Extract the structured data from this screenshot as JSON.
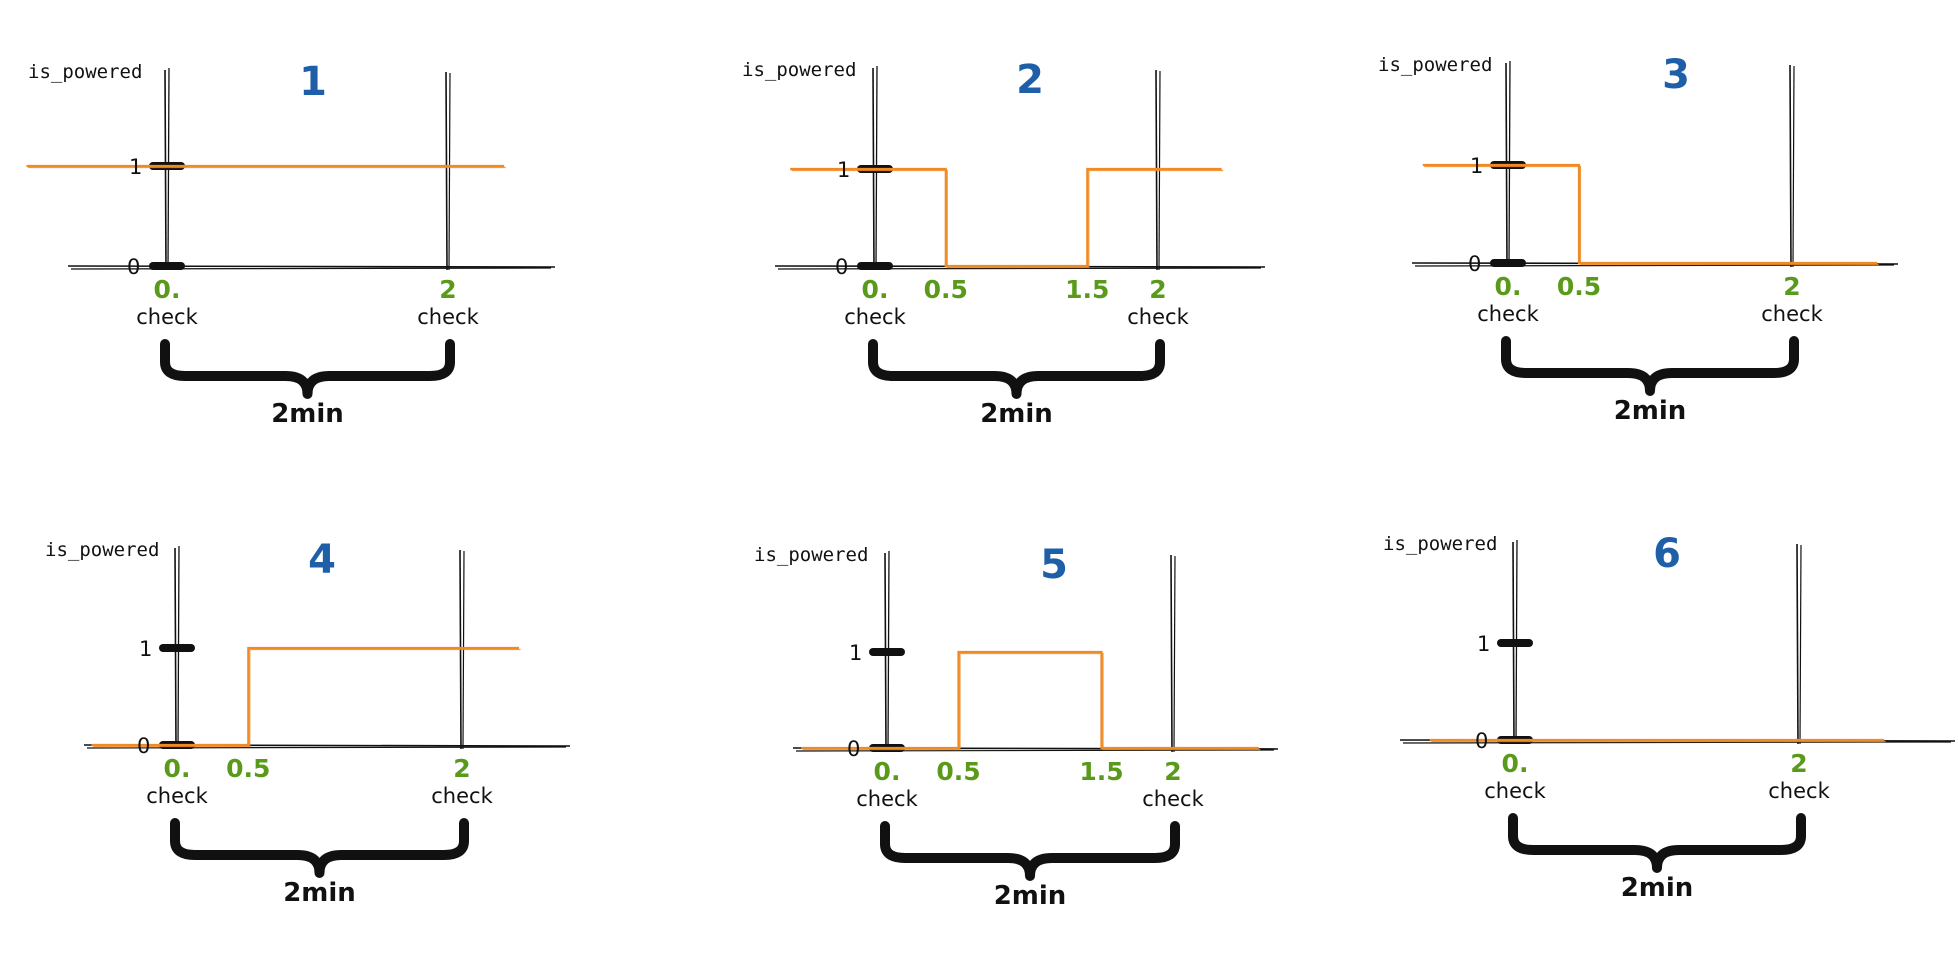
{
  "panels": [
    {
      "number": "1",
      "y_label": "is_powered",
      "y_ticks": [
        "1",
        "0"
      ],
      "x_ticks": [
        "0.",
        "2"
      ],
      "check_label": "check",
      "duration": "2min",
      "signal": [
        [
          -1.0,
          1
        ],
        [
          2.4,
          1
        ]
      ]
    },
    {
      "number": "2",
      "y_label": "is_powered",
      "y_ticks": [
        "1",
        "0"
      ],
      "x_ticks": [
        "0.",
        "0.5",
        "1.5",
        "2"
      ],
      "check_label": "check",
      "duration": "2min",
      "signal": [
        [
          -0.6,
          1
        ],
        [
          0.5,
          1
        ],
        [
          0.5,
          0
        ],
        [
          1.5,
          0
        ],
        [
          1.5,
          1
        ],
        [
          2.45,
          1
        ]
      ]
    },
    {
      "number": "3",
      "y_label": "is_powered",
      "y_ticks": [
        "1",
        "0"
      ],
      "x_ticks": [
        "0.",
        "0.5",
        "2"
      ],
      "check_label": "check",
      "duration": "2min",
      "signal": [
        [
          -0.6,
          1
        ],
        [
          0.5,
          1
        ],
        [
          0.5,
          0
        ],
        [
          2.6,
          0
        ]
      ]
    },
    {
      "number": "4",
      "y_label": "is_powered",
      "y_ticks": [
        "1",
        "0"
      ],
      "x_ticks": [
        "0.",
        "0.5",
        "2"
      ],
      "check_label": "check",
      "duration": "2min",
      "signal": [
        [
          -0.6,
          0
        ],
        [
          0.5,
          0
        ],
        [
          0.5,
          1
        ],
        [
          2.4,
          1
        ]
      ]
    },
    {
      "number": "5",
      "y_label": "is_powered",
      "y_ticks": [
        "1",
        "0"
      ],
      "x_ticks": [
        "0.",
        "0.5",
        "1.5",
        "2"
      ],
      "check_label": "check",
      "duration": "2min",
      "signal": [
        [
          -0.6,
          0
        ],
        [
          0.5,
          0
        ],
        [
          0.5,
          1
        ],
        [
          1.5,
          1
        ],
        [
          1.5,
          0
        ],
        [
          2.6,
          0
        ]
      ]
    },
    {
      "number": "6",
      "y_label": "is_powered",
      "y_ticks": [
        "1",
        "0"
      ],
      "x_ticks": [
        "0.",
        "2"
      ],
      "check_label": "check",
      "duration": "2min",
      "signal": [
        [
          -0.6,
          0
        ],
        [
          2.6,
          0
        ]
      ]
    }
  ],
  "colors": {
    "signal": "#f08a24",
    "number": "#1e5fa8",
    "tick": "#5a9a1a",
    "ink": "#111111"
  }
}
